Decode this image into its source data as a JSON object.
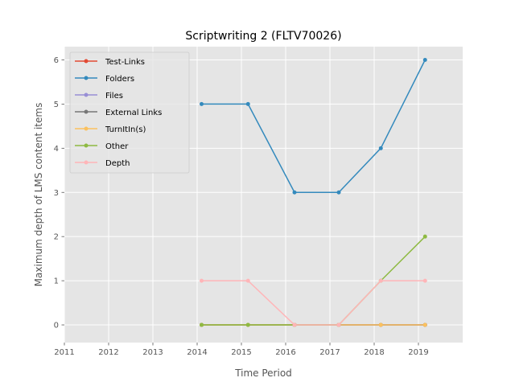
{
  "chart_data": {
    "type": "line",
    "title": "Scriptwriting 2 (FLTV70026)",
    "xlabel": "Time Period",
    "ylabel": "Maximum depth of LMS content items",
    "xlim": [
      2011,
      2020
    ],
    "ylim": [
      -0.4,
      6.3
    ],
    "x_ticks": [
      "2011",
      "2012",
      "2013",
      "2014",
      "2015",
      "2016",
      "2017",
      "2018",
      "2019"
    ],
    "y_ticks": [
      "0",
      "1",
      "2",
      "3",
      "4",
      "5",
      "6"
    ],
    "grid": true,
    "legend_position": "top-left",
    "x": [
      2014.1,
      2015.15,
      2016.2,
      2017.2,
      2018.15,
      2019.15
    ],
    "series": [
      {
        "name": "Test-Links",
        "color": "#e24a33",
        "values": [
          0,
          0,
          0,
          0,
          0,
          0
        ]
      },
      {
        "name": "Folders",
        "color": "#348abd",
        "values": [
          5,
          5,
          3,
          3,
          4,
          6
        ]
      },
      {
        "name": "Files",
        "color": "#988ed5",
        "values": [
          0,
          0,
          0,
          0,
          0,
          0
        ]
      },
      {
        "name": "External Links",
        "color": "#777777",
        "values": [
          0,
          0,
          0,
          0,
          0,
          0
        ]
      },
      {
        "name": "TurnItIn(s)",
        "color": "#fbc15e",
        "values": [
          0,
          0,
          0,
          0,
          0,
          0
        ]
      },
      {
        "name": "Other",
        "color": "#8eba42",
        "values": [
          0,
          0,
          0,
          0,
          1,
          2
        ]
      },
      {
        "name": "Depth",
        "color": "#ffb5b8",
        "values": [
          1,
          1,
          0,
          0,
          1,
          1
        ]
      }
    ]
  }
}
